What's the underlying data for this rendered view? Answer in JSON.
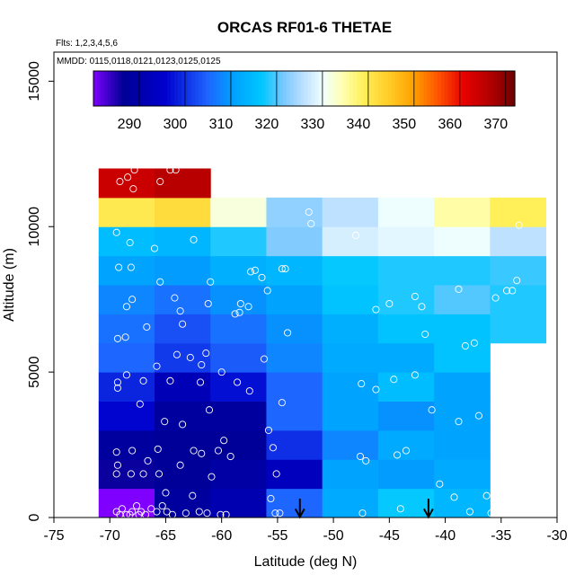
{
  "chart_data": {
    "type": "heatmap",
    "title": "ORCAS RF01-6 THETAE",
    "subtitle_flights": "Flts: 1,2,3,4,5,6",
    "subtitle_dates": "MMDD: 0115,0118,0121,0123,0125,0125",
    "xlabel": "Latitude (deg N)",
    "ylabel": "Altitude (m)",
    "xlim": [
      -75,
      -30
    ],
    "ylim": [
      0,
      16000
    ],
    "x_ticks": [
      "-75",
      "-70",
      "-65",
      "-60",
      "-55",
      "-50",
      "-45",
      "-40",
      "-35",
      "-30"
    ],
    "x_tick_values": [
      -75,
      -70,
      -65,
      -60,
      -55,
      -50,
      -45,
      -40,
      -35,
      -30
    ],
    "y_ticks": [
      "0",
      "5000",
      "10000",
      "15000"
    ],
    "y_tick_values": [
      0,
      5000,
      10000,
      15000
    ],
    "colorbar": {
      "min": 280,
      "max": 372,
      "ticks": [
        "290",
        "300",
        "310",
        "320",
        "330",
        "340",
        "350",
        "360",
        "370"
      ],
      "tick_values": [
        290,
        300,
        310,
        320,
        330,
        340,
        350,
        360,
        370
      ]
    },
    "x_bin_edges": [
      -71,
      -66,
      -61,
      -56,
      -51,
      -46,
      -41,
      -36,
      -31
    ],
    "y_bin_edges": [
      0,
      1000,
      2000,
      3000,
      4000,
      5000,
      6000,
      7000,
      8000,
      9000,
      10000,
      11000,
      12000
    ],
    "cells": [
      [
        280,
        288,
        291,
        305,
        312,
        317,
        314
      ],
      [
        286,
        287,
        289,
        293,
        311,
        310,
        312
      ],
      [
        288,
        287,
        287,
        300,
        308,
        312,
        311
      ],
      [
        296,
        288,
        288,
        305,
        311,
        309,
        311
      ],
      [
        299,
        292,
        297,
        305,
        311,
        315,
        311
      ],
      [
        305,
        301,
        304,
        308,
        312,
        312,
        316
      ],
      [
        306,
        303,
        306,
        309,
        313,
        316,
        316,
        318
      ],
      [
        308,
        306,
        309,
        311,
        316,
        318,
        320,
        318
      ],
      [
        311,
        310,
        313,
        314,
        317,
        318,
        318,
        319
      ],
      [
        315,
        314,
        318,
        322,
        328,
        329,
        330,
        326
      ],
      [
        340,
        342,
        332,
        323,
        326,
        330,
        335,
        339
      ],
      [
        364,
        366
      ]
    ],
    "arrows_at_latitude": [
      -53,
      -41.5
    ],
    "observations": [
      [
        -69.4,
        0.2
      ],
      [
        -68.9,
        0.3
      ],
      [
        -68.5,
        0.1
      ],
      [
        -68.0,
        0.2
      ],
      [
        -67.6,
        0.4
      ],
      [
        -67.2,
        0.2
      ],
      [
        -66.8,
        0.1
      ],
      [
        -66.3,
        0.3
      ],
      [
        -65.8,
        0.2
      ],
      [
        -65.3,
        0.4
      ],
      [
        -64.9,
        0.2
      ],
      [
        -64.4,
        0.1
      ],
      [
        -69.1,
        0.1
      ],
      [
        -68.2,
        0.1
      ],
      [
        -67.4,
        0.1
      ],
      [
        -65.0,
        0.85
      ],
      [
        -63.2,
        0.15
      ],
      [
        -62.0,
        0.2
      ],
      [
        -61.3,
        0.15
      ],
      [
        -60.1,
        0.1
      ],
      [
        -59.6,
        0.1
      ],
      [
        -62.6,
        0.75
      ],
      [
        -55.6,
        0.65
      ],
      [
        -55.2,
        0.15
      ],
      [
        -54.8,
        0.15
      ],
      [
        -47.4,
        0.15
      ],
      [
        -44.0,
        0.3
      ],
      [
        -39.2,
        0.7
      ],
      [
        -37.8,
        0.2
      ],
      [
        -35.9,
        0.15
      ],
      [
        -36.3,
        0.75
      ],
      [
        -40.5,
        1.15
      ],
      [
        -69.4,
        1.5
      ],
      [
        -69.3,
        1.8
      ],
      [
        -68.1,
        1.5
      ],
      [
        -67.0,
        1.5
      ],
      [
        -66.6,
        1.95
      ],
      [
        -65.6,
        1.5
      ],
      [
        -63.7,
        1.8
      ],
      [
        -62.5,
        2.3
      ],
      [
        -61.8,
        2.2
      ],
      [
        -60.9,
        1.4
      ],
      [
        -60.3,
        2.3
      ],
      [
        -59.2,
        2.1
      ],
      [
        -55.1,
        1.5
      ],
      [
        -47.6,
        2.1
      ],
      [
        -47.1,
        1.95
      ],
      [
        -44.3,
        2.15
      ],
      [
        -43.5,
        2.3
      ],
      [
        -35.6,
        2.35
      ],
      [
        -69.4,
        2.25
      ],
      [
        -68.0,
        2.3
      ],
      [
        -65.7,
        2.35
      ],
      [
        -59.8,
        2.65
      ],
      [
        -55.4,
        2.4
      ],
      [
        -55.8,
        3.0
      ],
      [
        -63.5,
        3.2
      ],
      [
        -65.1,
        3.3
      ],
      [
        -61.1,
        3.7
      ],
      [
        -54.6,
        3.95
      ],
      [
        -38.8,
        3.3
      ],
      [
        -37.0,
        3.5
      ],
      [
        -41.2,
        3.7
      ],
      [
        -69.3,
        4.45
      ],
      [
        -69.3,
        4.65
      ],
      [
        -68.5,
        4.9
      ],
      [
        -67.3,
        3.9
      ],
      [
        -67.0,
        4.7
      ],
      [
        -64.6,
        4.7
      ],
      [
        -61.9,
        4.65
      ],
      [
        -60.0,
        5.0
      ],
      [
        -58.6,
        4.65
      ],
      [
        -57.5,
        4.35
      ],
      [
        -47.5,
        4.6
      ],
      [
        -46.2,
        4.4
      ],
      [
        -44.6,
        4.75
      ],
      [
        -42.7,
        4.9
      ],
      [
        -35.4,
        4.95
      ],
      [
        -65.8,
        5.2
      ],
      [
        -64.0,
        5.6
      ],
      [
        -62.8,
        5.5
      ],
      [
        -61.4,
        5.65
      ],
      [
        -61.8,
        5.25
      ],
      [
        -56.2,
        5.45
      ],
      [
        -54.1,
        6.35
      ],
      [
        -69.3,
        6.15
      ],
      [
        -68.6,
        6.2
      ],
      [
        -66.7,
        6.55
      ],
      [
        -63.5,
        6.65
      ],
      [
        -58.8,
        7.0
      ],
      [
        -58.4,
        7.05
      ],
      [
        -57.6,
        7.25
      ],
      [
        -58.3,
        7.35
      ],
      [
        -41.8,
        6.3
      ],
      [
        -38.2,
        5.9
      ],
      [
        -37.4,
        6.0
      ],
      [
        -68.5,
        7.25
      ],
      [
        -68.0,
        7.5
      ],
      [
        -64.2,
        7.55
      ],
      [
        -63.7,
        7.1
      ],
      [
        -61.2,
        7.35
      ],
      [
        -55.9,
        7.8
      ],
      [
        -46.2,
        7.15
      ],
      [
        -45.0,
        7.35
      ],
      [
        -42.7,
        7.6
      ],
      [
        -42.1,
        7.25
      ],
      [
        -38.8,
        7.85
      ],
      [
        -35.5,
        7.55
      ],
      [
        -34.5,
        7.8
      ],
      [
        -34.0,
        7.8
      ],
      [
        -33.6,
        8.15
      ],
      [
        -69.2,
        8.6
      ],
      [
        -68.1,
        8.6
      ],
      [
        -65.5,
        8.1
      ],
      [
        -61.0,
        8.1
      ],
      [
        -57.4,
        8.45
      ],
      [
        -57.0,
        8.5
      ],
      [
        -56.4,
        8.25
      ],
      [
        -54.6,
        8.55
      ],
      [
        -54.3,
        8.55
      ],
      [
        -69.4,
        9.8
      ],
      [
        -68.2,
        9.45
      ],
      [
        -66.0,
        9.25
      ],
      [
        -62.5,
        9.55
      ],
      [
        -52.0,
        10.1
      ],
      [
        -52.2,
        10.5
      ],
      [
        -48.0,
        9.7
      ],
      [
        -33.4,
        10.05
      ],
      [
        -69.1,
        11.55
      ],
      [
        -68.4,
        11.7
      ],
      [
        -67.8,
        11.95
      ],
      [
        -67.9,
        11.3
      ],
      [
        -65.5,
        11.55
      ],
      [
        -64.6,
        11.95
      ],
      [
        -64.1,
        11.95
      ]
    ]
  }
}
